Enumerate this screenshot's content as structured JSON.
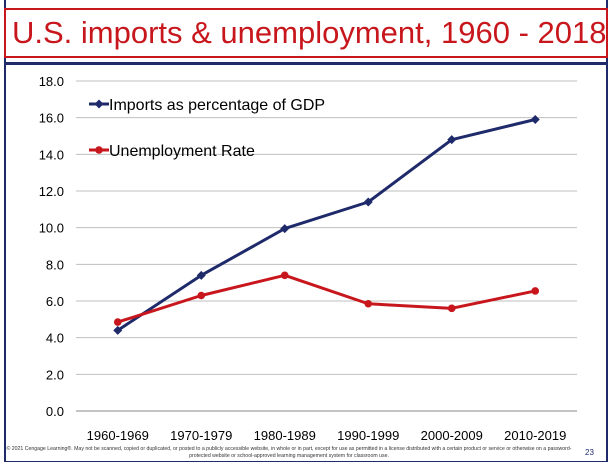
{
  "title": "U.S. imports & unemployment, 1960 - 2018",
  "footer": "© 2021 Cengage Learning®. May not be scanned, copied or duplicated, or posted to a publicly accessible website, in whole or in part, except for use as permitted in a license distributed with a certain product or service or otherwise on a password-protected website or school-approved learning management system for classroom use.",
  "page_number": "23",
  "colors": {
    "title_red": "#c8161d",
    "navy": "#1f2a6b",
    "imports_series": "#1f2a6b",
    "unemployment_series": "#c8161d"
  },
  "chart_data": {
    "type": "line",
    "categories": [
      "1960-1969",
      "1970-1979",
      "1980-1989",
      "1990-1999",
      "2000-2009",
      "2010-2019"
    ],
    "series": [
      {
        "name": "Imports as percentage of GDP",
        "values": [
          4.4,
          7.4,
          9.95,
          11.4,
          14.8,
          15.9
        ],
        "color": "#1f2a6b",
        "marker": "diamond"
      },
      {
        "name": "Unemployment Rate",
        "values": [
          4.85,
          6.3,
          7.4,
          5.85,
          5.6,
          6.55
        ],
        "color": "#c8161d",
        "marker": "circle"
      }
    ],
    "ylim": [
      0,
      18
    ],
    "yticks": [
      "0.0",
      "2.0",
      "4.0",
      "6.0",
      "8.0",
      "10.0",
      "12.0",
      "14.0",
      "16.0",
      "18.0"
    ],
    "grid": true,
    "legend": "top-left, inside plot"
  }
}
